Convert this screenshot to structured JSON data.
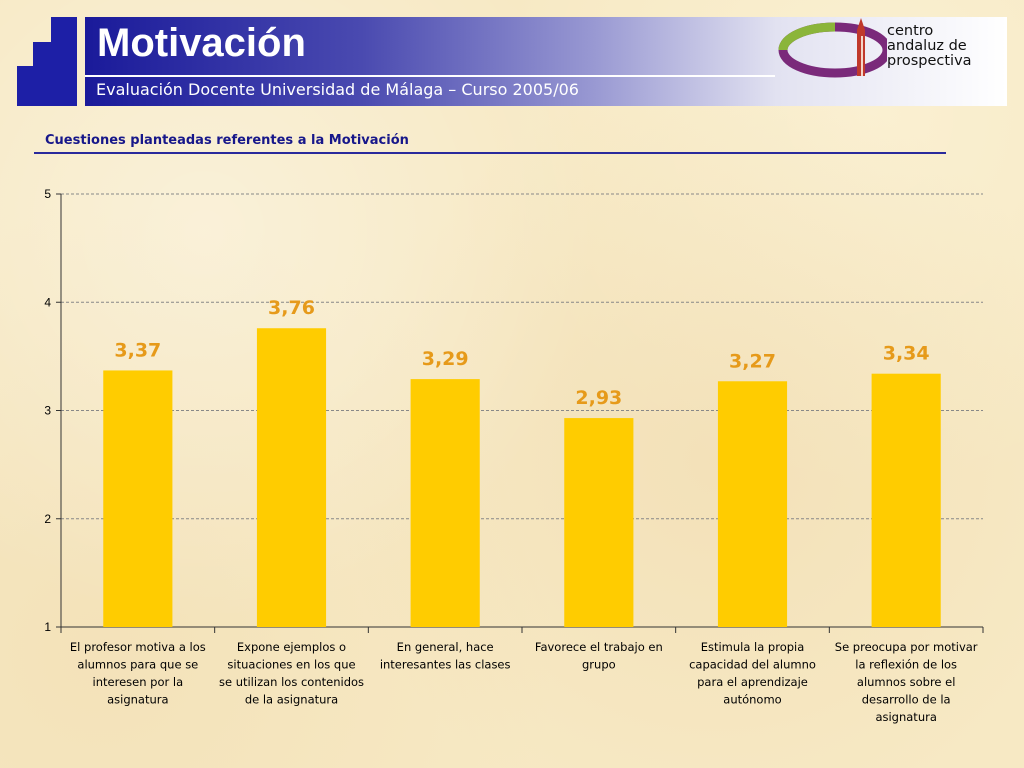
{
  "header": {
    "title": "Motivación",
    "subtitle": "Evaluación Docente Universidad de Málaga – Curso 2005/06"
  },
  "logo": {
    "lines": [
      "centro",
      "andaluz de",
      "prospectiva"
    ]
  },
  "section": {
    "title": "Cuestiones planteadas referentes a la Motivación"
  },
  "colors": {
    "bar": "#ffcc00",
    "value_label": "#e69a1a",
    "header_dark": "#1a1a9a"
  },
  "chart_data": {
    "type": "bar",
    "title": "",
    "xlabel": "",
    "ylabel": "",
    "ylim": [
      1,
      5
    ],
    "yticks": [
      1,
      2,
      3,
      4,
      5
    ],
    "grid": true,
    "categories": [
      [
        "El profesor motiva a los",
        "alumnos para que se",
        "interesen por la",
        "asignatura"
      ],
      [
        "Expone ejemplos o",
        "situaciones en los que",
        "se utilizan los contenidos",
        "de la asignatura"
      ],
      [
        "En general, hace",
        "interesantes las clases"
      ],
      [
        "Favorece el trabajo en",
        "grupo"
      ],
      [
        "Estimula la propia",
        "capacidad del alumno",
        "para el aprendizaje",
        "autónomo"
      ],
      [
        "Se preocupa por motivar",
        "la reflexión de los",
        "alumnos sobre el",
        "desarrollo de la",
        "asignatura"
      ]
    ],
    "values": [
      3.37,
      3.76,
      3.29,
      2.93,
      3.27,
      3.34
    ],
    "data_labels": [
      "3,37",
      "3,76",
      "3,29",
      "2,93",
      "3,27",
      "3,34"
    ]
  }
}
